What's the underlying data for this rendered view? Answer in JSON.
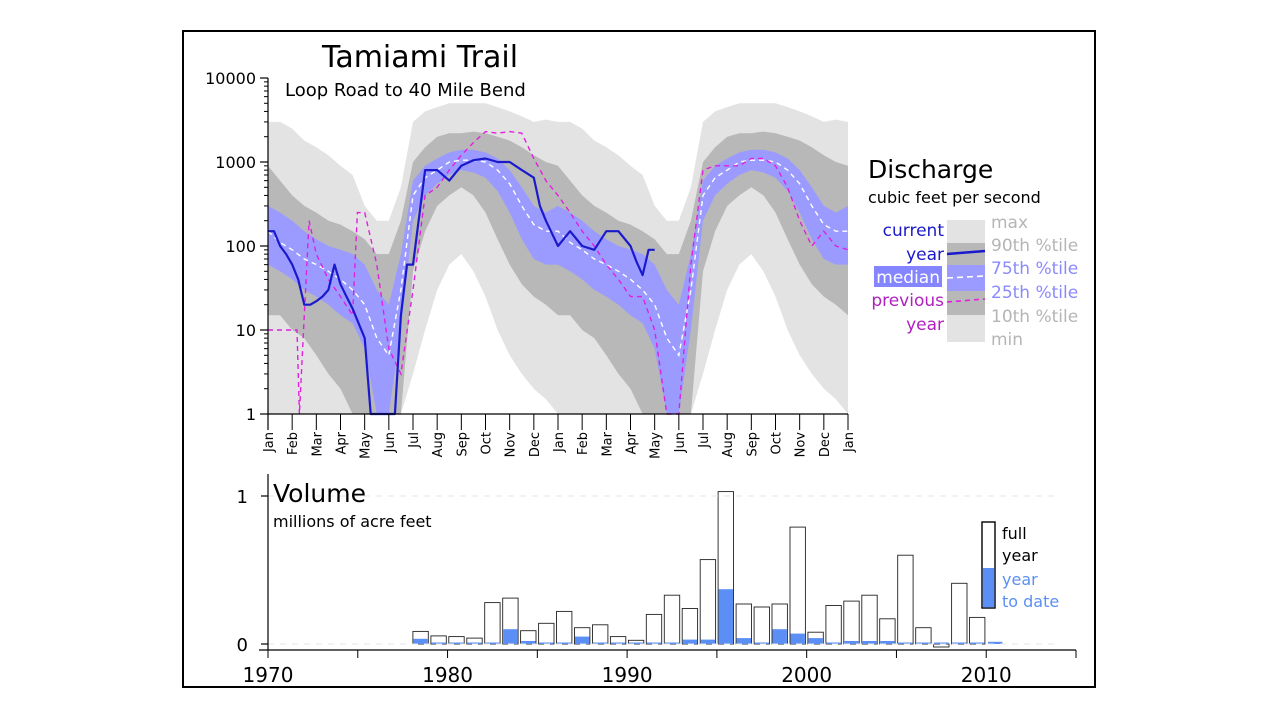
{
  "title": "Tamiami Trail",
  "subtitle": "Loop Road to 40 Mile Bend",
  "colors": {
    "current": "#1a1acc",
    "previous": "#e020e0",
    "band_25_75": "#9b9bff",
    "band_10_90": "#b8b8b8",
    "band_min_max": "#e3e3e3",
    "ytd_bar": "#5b8ff5",
    "legend_muted": "#b5b5b5",
    "legend_blue": "#8a8aff",
    "median_label_bg": "#8585ff"
  },
  "chart_data": [
    {
      "type": "area",
      "title": "Discharge",
      "subtitle": "cubic feet per second",
      "scale": "log",
      "ylim": [
        1,
        10000
      ],
      "yticks": [
        "10000",
        "1000",
        "100",
        "10",
        "1"
      ],
      "xticks": [
        "Jan",
        "Feb",
        "Mar",
        "Apr",
        "May",
        "Jun",
        "Jul",
        "Aug",
        "Sep",
        "Oct",
        "Nov",
        "Dec",
        "Jan",
        "Feb",
        "Mar",
        "Apr",
        "May",
        "Jun",
        "Jul",
        "Aug",
        "Sep",
        "Oct",
        "Nov",
        "Dec",
        "Jan"
      ],
      "x_months": [
        0,
        0.5,
        1,
        1.5,
        2,
        2.5,
        3,
        3.5,
        4,
        4.5,
        5,
        5.5,
        6,
        6.5,
        7,
        7.5,
        8,
        8.5,
        9,
        9.5,
        10,
        10.5,
        11,
        11.5,
        12,
        12.5,
        13,
        13.5,
        14,
        14.5,
        15,
        15.5,
        16,
        16.5,
        17,
        17.5,
        18,
        18.5,
        19,
        19.5,
        20,
        20.5,
        21,
        21.5,
        22,
        22.5,
        23,
        23.5,
        24
      ],
      "bands": {
        "max": [
          3000,
          3000,
          2500,
          1800,
          1500,
          1200,
          900,
          700,
          300,
          200,
          200,
          500,
          3000,
          4000,
          4500,
          5000,
          5000,
          5000,
          5000,
          4500,
          4000,
          3500,
          3000,
          3200,
          3000,
          3000,
          2500,
          1800,
          1500,
          1200,
          900,
          700,
          300,
          200,
          200,
          500,
          3000,
          4000,
          4500,
          5000,
          5000,
          5000,
          5000,
          4500,
          4000,
          3500,
          3000,
          3200,
          3000
        ],
        "p90": [
          900,
          600,
          400,
          300,
          250,
          200,
          180,
          150,
          120,
          80,
          80,
          200,
          1000,
          1500,
          2000,
          2200,
          2200,
          2300,
          2200,
          2000,
          1800,
          1500,
          1200,
          1000,
          900,
          600,
          400,
          300,
          250,
          200,
          180,
          150,
          120,
          80,
          80,
          200,
          1000,
          1500,
          2000,
          2200,
          2200,
          2300,
          2200,
          2000,
          1800,
          1500,
          1200,
          1000,
          900
        ],
        "p75": [
          300,
          250,
          200,
          150,
          120,
          100,
          90,
          80,
          60,
          30,
          20,
          80,
          600,
          900,
          1100,
          1300,
          1400,
          1400,
          1300,
          1100,
          800,
          500,
          300,
          250,
          300,
          250,
          200,
          150,
          120,
          100,
          90,
          80,
          60,
          30,
          20,
          80,
          600,
          900,
          1100,
          1300,
          1400,
          1400,
          1300,
          1100,
          800,
          500,
          300,
          250,
          300
        ],
        "median": [
          150,
          110,
          90,
          70,
          60,
          50,
          40,
          30,
          20,
          8,
          5,
          30,
          400,
          650,
          800,
          1000,
          1050,
          1050,
          1000,
          800,
          550,
          300,
          180,
          150,
          150,
          110,
          90,
          70,
          60,
          50,
          40,
          30,
          20,
          8,
          5,
          30,
          400,
          650,
          800,
          1000,
          1050,
          1050,
          1000,
          800,
          550,
          300,
          180,
          150,
          150
        ],
        "p25": [
          60,
          50,
          40,
          30,
          25,
          20,
          15,
          12,
          6,
          1,
          1,
          10,
          200,
          400,
          550,
          700,
          800,
          750,
          650,
          450,
          250,
          120,
          70,
          60,
          60,
          50,
          40,
          30,
          25,
          20,
          15,
          12,
          6,
          1,
          1,
          10,
          200,
          400,
          550,
          700,
          800,
          750,
          650,
          450,
          250,
          120,
          70,
          60,
          60
        ],
        "p10": [
          15,
          15,
          10,
          8,
          5,
          3,
          2,
          1,
          1,
          1,
          1,
          1,
          50,
          150,
          300,
          400,
          500,
          400,
          250,
          120,
          60,
          35,
          25,
          20,
          15,
          15,
          10,
          8,
          5,
          3,
          2,
          1,
          1,
          1,
          1,
          1,
          50,
          150,
          300,
          400,
          500,
          400,
          250,
          120,
          60,
          35,
          25,
          20,
          15
        ],
        "min": [
          1,
          1,
          1,
          1,
          1,
          1,
          1,
          1,
          1,
          1,
          1,
          1,
          3,
          10,
          30,
          60,
          80,
          50,
          25,
          10,
          5,
          3,
          2,
          1.5,
          1,
          1,
          1,
          1,
          1,
          1,
          1,
          1,
          1,
          1,
          1,
          1,
          3,
          10,
          30,
          60,
          80,
          50,
          25,
          10,
          5,
          3,
          2,
          1.5,
          1
        ]
      },
      "series": [
        {
          "name": "current year",
          "x": [
            0,
            0.25,
            0.5,
            0.75,
            1,
            1.25,
            1.5,
            1.75,
            2,
            2.25,
            2.5,
            2.75,
            3,
            3.25,
            3.5,
            3.75,
            4,
            4.25,
            4.5,
            4.75,
            5,
            5.25,
            5.5,
            5.75,
            6,
            6.5,
            7,
            7.5,
            8,
            8.5,
            9,
            9.5,
            10,
            10.5,
            11,
            11.25,
            11.5,
            12,
            12.5,
            13,
            13.5,
            14,
            14.5,
            15,
            15.25,
            15.5,
            15.75,
            16
          ],
          "y": [
            150,
            150,
            100,
            80,
            60,
            40,
            20,
            20,
            22,
            25,
            30,
            60,
            35,
            25,
            18,
            12,
            8,
            1,
            1,
            1,
            1,
            1,
            15,
            60,
            60,
            800,
            800,
            600,
            900,
            1050,
            1100,
            1000,
            1000,
            800,
            650,
            300,
            200,
            100,
            150,
            100,
            90,
            150,
            150,
            100,
            65,
            45,
            90,
            90
          ]
        },
        {
          "name": "previous year",
          "x": [
            0,
            1,
            1.2,
            1.3,
            1.5,
            1.7,
            2,
            2.5,
            3,
            3.5,
            3.7,
            4,
            4.5,
            5,
            5.5,
            6,
            6.5,
            7,
            7.5,
            8,
            8.5,
            9,
            9.5,
            10,
            10.5,
            11,
            11.5,
            12,
            12.5,
            13,
            13.5,
            14,
            14.5,
            15,
            15.5,
            16,
            16.5,
            17,
            17.5,
            18,
            18.5,
            19,
            19.5,
            20,
            20.5,
            21,
            21.5,
            22,
            22.5,
            23,
            23.5,
            24
          ],
          "y": [
            10,
            10,
            10,
            1,
            15,
            200,
            80,
            40,
            25,
            15,
            250,
            250,
            60,
            6,
            3,
            30,
            400,
            500,
            800,
            1200,
            1700,
            2300,
            2200,
            2300,
            2200,
            1100,
            600,
            400,
            250,
            150,
            100,
            60,
            40,
            25,
            25,
            10,
            1,
            1,
            60,
            800,
            900,
            900,
            900,
            1100,
            1100,
            900,
            500,
            200,
            100,
            150,
            100,
            90
          ]
        }
      ]
    },
    {
      "type": "bar",
      "title": "Volume",
      "subtitle": "millions of acre feet",
      "ylim": [
        0,
        1
      ],
      "yticks": [
        "0",
        "1"
      ],
      "xticks": [
        "1970",
        "1980",
        "1990",
        "2000",
        "2010"
      ],
      "years": [
        1978,
        1979,
        1980,
        1981,
        1982,
        1983,
        1984,
        1985,
        1986,
        1987,
        1988,
        1989,
        1990,
        1991,
        1992,
        1993,
        1994,
        1995,
        1996,
        1997,
        1998,
        1999,
        2000,
        2001,
        2002,
        2003,
        2004,
        2005,
        2006,
        2007,
        2008,
        2009,
        2010
      ],
      "full_year": [
        0.085,
        0.055,
        0.05,
        0.04,
        0.28,
        0.31,
        0.09,
        0.14,
        0.22,
        0.11,
        0.13,
        0.05,
        0.025,
        0.2,
        0.33,
        0.24,
        0.57,
        1.03,
        0.27,
        0.25,
        0.27,
        0.79,
        0.08,
        0.26,
        0.29,
        0.33,
        0.17,
        0.6,
        0.11,
        -0.02,
        0.41,
        0.18,
        null
      ],
      "year_to_date": [
        0.035,
        0.01,
        0.01,
        0.005,
        0.005,
        0.1,
        0.02,
        0.005,
        0.01,
        0.05,
        0.01,
        0.005,
        0.003,
        0.01,
        0.01,
        0.03,
        0.03,
        0.37,
        0.04,
        0.01,
        0.1,
        0.07,
        0.04,
        0.01,
        0.02,
        0.02,
        0.02,
        0.01,
        0.01,
        0.005,
        0.005,
        0.01,
        0.015
      ]
    }
  ],
  "legend": {
    "current": "current",
    "year1": "year",
    "median": "median",
    "previous": "previous",
    "year2": "year",
    "max": "max",
    "p90": "90th %tile",
    "p75": "75th %tile",
    "p25": "25th %tile",
    "p10": "10th %tile",
    "min": "min",
    "full": "full",
    "full_year": "year",
    "ytd1": "year",
    "ytd2": "to date"
  }
}
